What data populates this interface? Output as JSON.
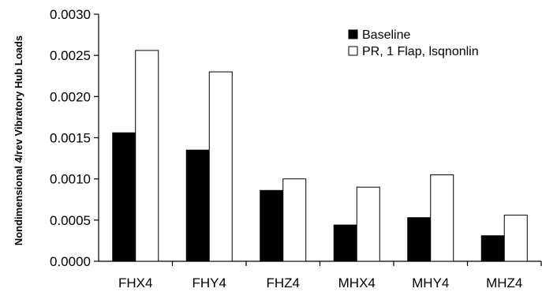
{
  "chart_data": {
    "type": "bar",
    "title": "",
    "xlabel": "",
    "ylabel": "Nondimensional 4/rev Vibratory Hub Loads",
    "ylim": [
      0,
      0.003
    ],
    "yticks": [
      "0.0000",
      "0.0005",
      "0.0010",
      "0.0015",
      "0.0020",
      "0.0025",
      "0.0030"
    ],
    "categories": [
      "FHX4",
      "FHY4",
      "FHZ4",
      "MHX4",
      "MHY4",
      "MHZ4"
    ],
    "series": [
      {
        "name": "Baseline",
        "color": "#000000",
        "values": [
          0.00156,
          0.00135,
          0.00086,
          0.00044,
          0.00053,
          0.00031
        ]
      },
      {
        "name": "PR, 1 Flap, lsqnonlin",
        "color": "#ffffff",
        "values": [
          0.00256,
          0.0023,
          0.001,
          0.0009,
          0.00105,
          0.00056
        ]
      }
    ],
    "grid": false,
    "legend": "top-right"
  }
}
